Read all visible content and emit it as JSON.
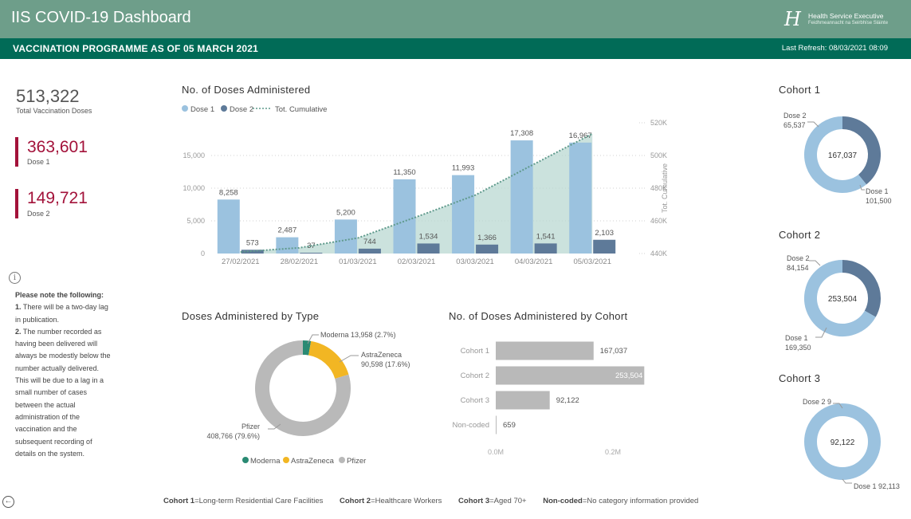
{
  "header": {
    "title": "IIS COVID-19 Dashboard",
    "subtitle": "VACCINATION PROGRAMME AS OF 05 MARCH 2021",
    "last_refresh": "Last Refresh: 08/03/2021 08:09",
    "logo_line1": "Health Service Executive",
    "logo_line2": "Feidhmeannacht na Seirbhíse Sláinte",
    "logo_mark": "H"
  },
  "kpis": {
    "total_value": "513,322",
    "total_label": "Total Vaccination Doses",
    "dose1_value": "363,601",
    "dose1_label": "Dose 1",
    "dose2_value": "149,721",
    "dose2_label": "Dose 2"
  },
  "note": {
    "title": "Please note the following:",
    "item1_num": "1.",
    "item1": "There will be a two-day lag in publication.",
    "item2_num": "2.",
    "item2": "The number recorded as having been delivered will always be modestly below the number actually delivered.  This will be due to a lag in a small number of cases between the actual administration of the vaccination and the subsequent recording of details on the system."
  },
  "footer": {
    "c1_key": "Cohort 1",
    "c1_text": "=Long-term Residential Care Facilities",
    "c2_key": "Cohort 2",
    "c2_text": "=Healthcare Workers",
    "c3_key": "Cohort 3",
    "c3_text": "=Aged 70+",
    "nc_key": "Non-coded",
    "nc_text": "=No category information provided"
  },
  "colors": {
    "dose1": "#9bc2df",
    "dose2": "#5e7a99",
    "cumulative_line": "#5f9a8c",
    "cumulative_area": "#b9d8d2",
    "moderna": "#2a8a73",
    "astrazeneca": "#f2b623",
    "pfizer": "#b9b9b9",
    "cohort_bar": "#b9b9b9",
    "accent": "#a3123a",
    "header": "#6e9e8a",
    "subheader": "#016b57"
  },
  "chart_data": [
    {
      "id": "doses_administered",
      "type": "bar",
      "title": "No. of Doses Administered",
      "legend": [
        "Dose 1",
        "Dose 2",
        "Tot. Cumulative"
      ],
      "legend_position": "top-left",
      "categories": [
        "27/02/2021",
        "28/02/2021",
        "01/03/2021",
        "02/03/2021",
        "03/03/2021",
        "04/03/2021",
        "05/03/2021"
      ],
      "series": [
        {
          "name": "Dose 1",
          "values": [
            8258,
            2487,
            5200,
            11350,
            11993,
            17308,
            16967
          ]
        },
        {
          "name": "Dose 2",
          "values": [
            573,
            37,
            744,
            1534,
            1366,
            1541,
            2103
          ]
        },
        {
          "name": "Tot. Cumulative",
          "axis": "right",
          "values": [
            441000,
            443500,
            449500,
            462400,
            475700,
            494600,
            513322
          ]
        }
      ],
      "data_labels_dose1": [
        "8,258",
        "2,487",
        "5,200",
        "11,350",
        "11,993",
        "17,308",
        "16,967"
      ],
      "data_labels_dose2": [
        "573",
        "37",
        "744",
        "1,534",
        "1,366",
        "1,541",
        "2,103"
      ],
      "y_ticks": [
        "0",
        "5,000",
        "10,000",
        "15,000"
      ],
      "y_tick_values": [
        0,
        5000,
        10000,
        15000
      ],
      "ylim": [
        0,
        20000
      ],
      "y2label": "Tot. Cumulative",
      "y2_ticks": [
        "440K",
        "460K",
        "480K",
        "500K",
        "520K"
      ],
      "y2_tick_values": [
        440000,
        460000,
        480000,
        500000,
        520000
      ],
      "y2lim": [
        440000,
        520000
      ],
      "grid": true
    },
    {
      "id": "doses_by_type",
      "type": "pie",
      "title": "Doses Administered by Type",
      "legend": [
        "Moderna",
        "AstraZeneca",
        "Pfizer"
      ],
      "legend_position": "bottom",
      "slices": [
        {
          "name": "Moderna",
          "value": 13958,
          "label": "Moderna 13,958 (2.7%)"
        },
        {
          "name": "AstraZeneca",
          "value": 90598,
          "label_line1": "AstraZeneca",
          "label_line2": "90,598 (17.6%)"
        },
        {
          "name": "Pfizer",
          "value": 408766,
          "label_line1": "Pfizer",
          "label_line2": "408,766 (79.6%)"
        }
      ]
    },
    {
      "id": "doses_by_cohort",
      "type": "bar",
      "orientation": "horizontal",
      "title": "No. of Doses Administered by Cohort",
      "categories": [
        "Cohort 1",
        "Cohort 2",
        "Cohort 3",
        "Non-coded"
      ],
      "values": [
        167037,
        253504,
        92122,
        659
      ],
      "data_labels": [
        "167,037",
        "253,504",
        "92,122",
        "659"
      ],
      "x_ticks": [
        "0.0M",
        "0.2M"
      ],
      "x_tick_values": [
        0,
        200000
      ],
      "xlim": [
        0,
        300000
      ]
    },
    {
      "id": "cohort1",
      "type": "pie",
      "title": "Cohort 1",
      "total_label": "167,037",
      "slices": [
        {
          "name": "Dose 2",
          "value": 65537,
          "label_value": "65,537"
        },
        {
          "name": "Dose 1",
          "value": 101500,
          "label_value": "101,500"
        }
      ]
    },
    {
      "id": "cohort2",
      "type": "pie",
      "title": "Cohort 2",
      "total_label": "253,504",
      "slices": [
        {
          "name": "Dose 2",
          "value": 84154,
          "label_value": "84,154"
        },
        {
          "name": "Dose 1",
          "value": 169350,
          "label_value": "169,350"
        }
      ]
    },
    {
      "id": "cohort3",
      "type": "pie",
      "title": "Cohort 3",
      "total_label": "92,122",
      "slices": [
        {
          "name": "Dose 2",
          "value": 9,
          "label": "Dose 2 9"
        },
        {
          "name": "Dose 1",
          "value": 92113,
          "label": "Dose 1 92,113"
        }
      ]
    }
  ]
}
